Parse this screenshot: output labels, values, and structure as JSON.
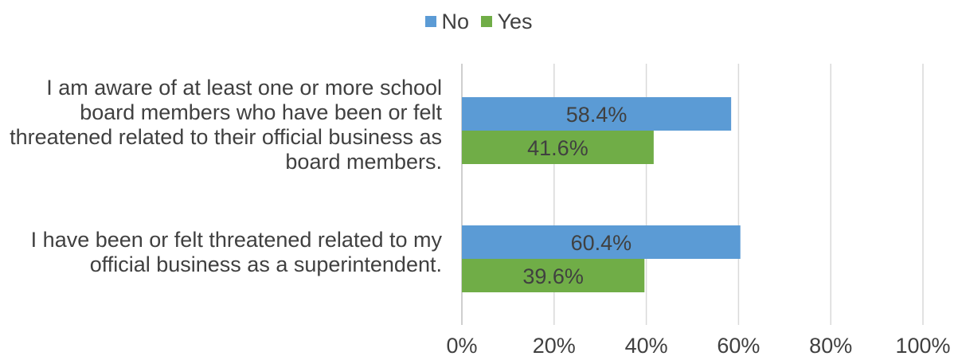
{
  "chart_data": {
    "type": "bar",
    "orientation": "horizontal",
    "categories": [
      "I am aware of at least one or more school board members who have been or felt threatened related to their official business as board members.",
      "I have been or felt threatened related to my official business as a superintendent."
    ],
    "series": [
      {
        "name": "No",
        "values": [
          58.4,
          60.4
        ],
        "labels": [
          "58.4%",
          "60.4%"
        ],
        "color": "#5B9BD5"
      },
      {
        "name": "Yes",
        "values": [
          41.6,
          39.6
        ],
        "labels": [
          "41.6%",
          "39.6%"
        ],
        "color": "#70AD47"
      }
    ],
    "xlim": [
      0,
      100
    ],
    "xticks": [
      "0%",
      "20%",
      "40%",
      "60%",
      "80%",
      "100%"
    ],
    "grid": true,
    "legend_position": "top"
  }
}
